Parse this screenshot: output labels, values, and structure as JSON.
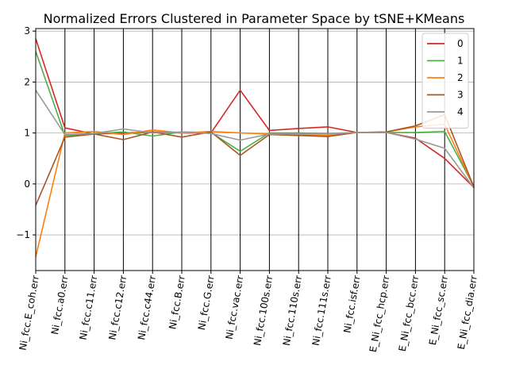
{
  "chart_data": {
    "type": "line",
    "title": "Normalized Errors Clustered in Parameter Space by tSNE+KMeans",
    "xlabel": "",
    "ylabel": "",
    "categories": [
      "Ni_fcc.E_coh.err",
      "Ni_fcc.a0.err",
      "Ni_fcc.c11.err",
      "Ni_fcc.c12.err",
      "Ni_fcc.c44.err",
      "Ni_fcc.B.err",
      "Ni_fcc.G.err",
      "Ni_fcc.vac.err",
      "Ni_fcc.100s.err",
      "Ni_fcc.110s.err",
      "Ni_fcc.111s.err",
      "Ni_fcc.isf.err",
      "E_Ni_fcc_hcp.err",
      "E_Ni_fcc_bcc.err",
      "E_Ni_fcc_sc.err",
      "E_Ni_fcc_dia.err"
    ],
    "ylim": [
      -1.7,
      3.05
    ],
    "yticks": [
      -1,
      0,
      1,
      2,
      3
    ],
    "ytick_labels": [
      "−1",
      "0",
      "1",
      "2",
      "3"
    ],
    "grid": true,
    "legend_position": "top-right",
    "series": [
      {
        "name": "0",
        "color": "#d62728",
        "values": [
          2.85,
          1.1,
          0.98,
          1.0,
          1.02,
          1.0,
          1.0,
          1.84,
          1.05,
          1.09,
          1.12,
          1.01,
          1.01,
          0.9,
          0.5,
          -0.07
        ]
      },
      {
        "name": "1",
        "color": "#4daf4a",
        "values": [
          2.6,
          0.95,
          0.99,
          1.02,
          0.94,
          1.02,
          1.01,
          0.64,
          1.0,
          1.0,
          0.99,
          1.01,
          1.01,
          1.01,
          1.03,
          -0.05
        ]
      },
      {
        "name": "2",
        "color": "#ff7f0e",
        "values": [
          -1.43,
          1.0,
          1.03,
          0.97,
          1.06,
          1.0,
          1.03,
          1.0,
          0.98,
          0.96,
          0.95,
          1.01,
          1.02,
          1.12,
          1.17,
          -0.06
        ]
      },
      {
        "name": "3",
        "color": "#a65628",
        "values": [
          -0.42,
          0.92,
          0.98,
          0.87,
          1.02,
          0.92,
          1.02,
          0.56,
          0.97,
          0.95,
          0.93,
          1.01,
          1.02,
          1.14,
          1.36,
          -0.06
        ]
      },
      {
        "name": "4",
        "color": "#999999",
        "values": [
          1.84,
          0.97,
          0.99,
          1.08,
          1.0,
          1.02,
          0.99,
          0.86,
          0.98,
          0.98,
          0.98,
          1.01,
          1.01,
          0.88,
          0.7,
          -0.08
        ]
      }
    ]
  }
}
